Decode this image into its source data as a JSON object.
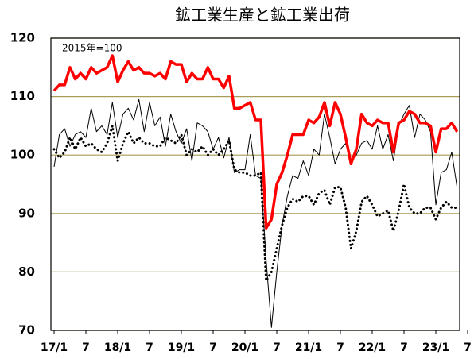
{
  "chart_data": {
    "type": "line",
    "title": "鉱工業生産と鉱工業出荷",
    "annotation": "2015年=100",
    "categories": [
      "17/1",
      null,
      null,
      null,
      null,
      null,
      "7",
      null,
      null,
      null,
      null,
      null,
      "18/1",
      null,
      null,
      null,
      null,
      null,
      "7",
      null,
      null,
      null,
      null,
      null,
      "19/1",
      null,
      null,
      null,
      null,
      null,
      "7",
      null,
      null,
      null,
      null,
      null,
      "20/1",
      null,
      null,
      null,
      null,
      null,
      "7",
      null,
      null,
      null,
      null,
      null,
      "21/1",
      null,
      null,
      null,
      null,
      null,
      "7",
      null,
      null,
      null,
      null,
      null,
      "22/1",
      null,
      null,
      null,
      null,
      null,
      "7",
      null,
      null,
      null,
      null,
      null,
      "23/1",
      null,
      null,
      null,
      null,
      null,
      "7"
    ],
    "series": [
      {
        "color": "#ff0000",
        "line_style": "thick",
        "values": [
          111,
          112,
          112,
          115,
          113,
          114,
          113,
          115,
          114,
          114.5,
          115,
          117,
          112.5,
          114.5,
          116,
          114.5,
          115,
          114,
          114,
          113.5,
          114,
          113,
          116,
          115.5,
          115.5,
          112.5,
          114,
          113,
          113,
          115,
          113,
          113,
          111.5,
          113.5,
          108,
          108,
          108.5,
          109,
          106,
          106,
          87.5,
          89,
          95,
          97,
          100,
          103.5,
          103.5,
          103.5,
          106,
          105.5,
          106.5,
          109,
          105,
          109,
          107,
          103,
          98.5,
          101,
          107,
          105.5,
          105,
          106,
          105.5,
          105.5,
          100.5,
          105.5,
          106,
          107.5,
          107,
          105.5,
          105.5,
          105,
          100.5,
          104.5,
          104.5,
          105.5,
          104,
          null,
          null
        ]
      },
      {
        "color": "#000000",
        "line_style": "thin",
        "values": [
          98,
          103.5,
          104.5,
          101.5,
          103.5,
          104,
          103,
          108,
          104,
          105,
          103.5,
          109,
          103,
          107,
          108,
          106,
          109.5,
          104,
          109,
          105,
          106.5,
          101.5,
          107,
          104,
          102,
          104.5,
          99,
          105.5,
          105,
          104,
          101,
          103,
          99.5,
          103,
          97,
          97.5,
          97.5,
          103.5,
          96.5,
          96,
          82,
          70.5,
          80,
          88,
          93,
          96.5,
          96,
          99,
          96.5,
          101,
          100,
          107,
          103,
          98.5,
          101,
          102,
          99,
          100,
          102,
          102.5,
          101,
          105,
          101,
          103.5,
          99,
          105,
          107,
          108.5,
          103,
          107,
          106,
          104,
          91.5,
          97,
          97.5,
          100.5,
          94.5,
          null,
          null
        ]
      },
      {
        "color": "#000000",
        "line_style": "dotted",
        "values": [
          101,
          99.5,
          100.5,
          103,
          101,
          103,
          101.5,
          102,
          101,
          100.5,
          102,
          105,
          99,
          102,
          104,
          102,
          103,
          102,
          102,
          101.5,
          101.5,
          103,
          102.5,
          102,
          103.5,
          100,
          101,
          100.5,
          101.5,
          100,
          101,
          100,
          101,
          102.5,
          97.5,
          97,
          97,
          96.5,
          96.5,
          97,
          78.5,
          80,
          84,
          88,
          91,
          92.5,
          92,
          93,
          93,
          91.5,
          93.5,
          94,
          91.5,
          94.5,
          94.5,
          91,
          84,
          87,
          92,
          93,
          91.5,
          89.5,
          90,
          90.5,
          87,
          90.5,
          95,
          91,
          90,
          90,
          91,
          91,
          89,
          91,
          92,
          91,
          91,
          null,
          null
        ]
      }
    ],
    "ylim": [
      70,
      120
    ],
    "yticks": [
      70,
      80,
      90,
      100,
      110,
      120
    ],
    "grid": true,
    "grid_color": "#a89c58"
  }
}
